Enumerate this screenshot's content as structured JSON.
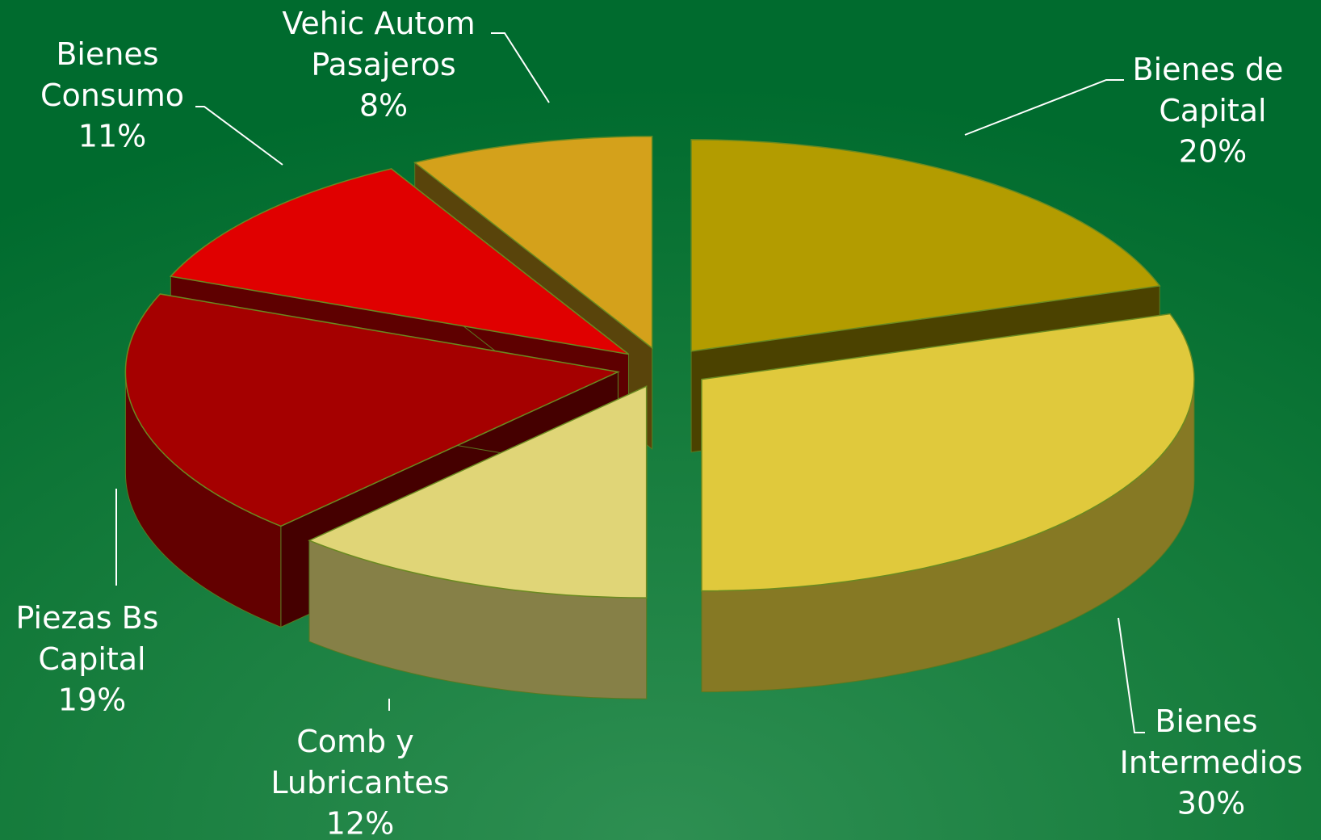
{
  "chart_data": {
    "type": "pie3d",
    "categories": [
      "Bienes de Capital",
      "Bienes Intermedios",
      "Comb y Lubricantes",
      "Piezas Bs Capital",
      "Bienes Consumo",
      "Vehic Autom Pasajeros"
    ],
    "values": [
      20,
      30,
      12,
      19,
      11,
      8
    ],
    "value_labels": [
      "20%",
      "30%",
      "12%",
      "19%",
      "11%",
      "8%"
    ],
    "colors": [
      "#b39c00",
      "#e0c93c",
      "#e0d577",
      "#a50000",
      "#e00000",
      "#d4a11b"
    ]
  }
}
